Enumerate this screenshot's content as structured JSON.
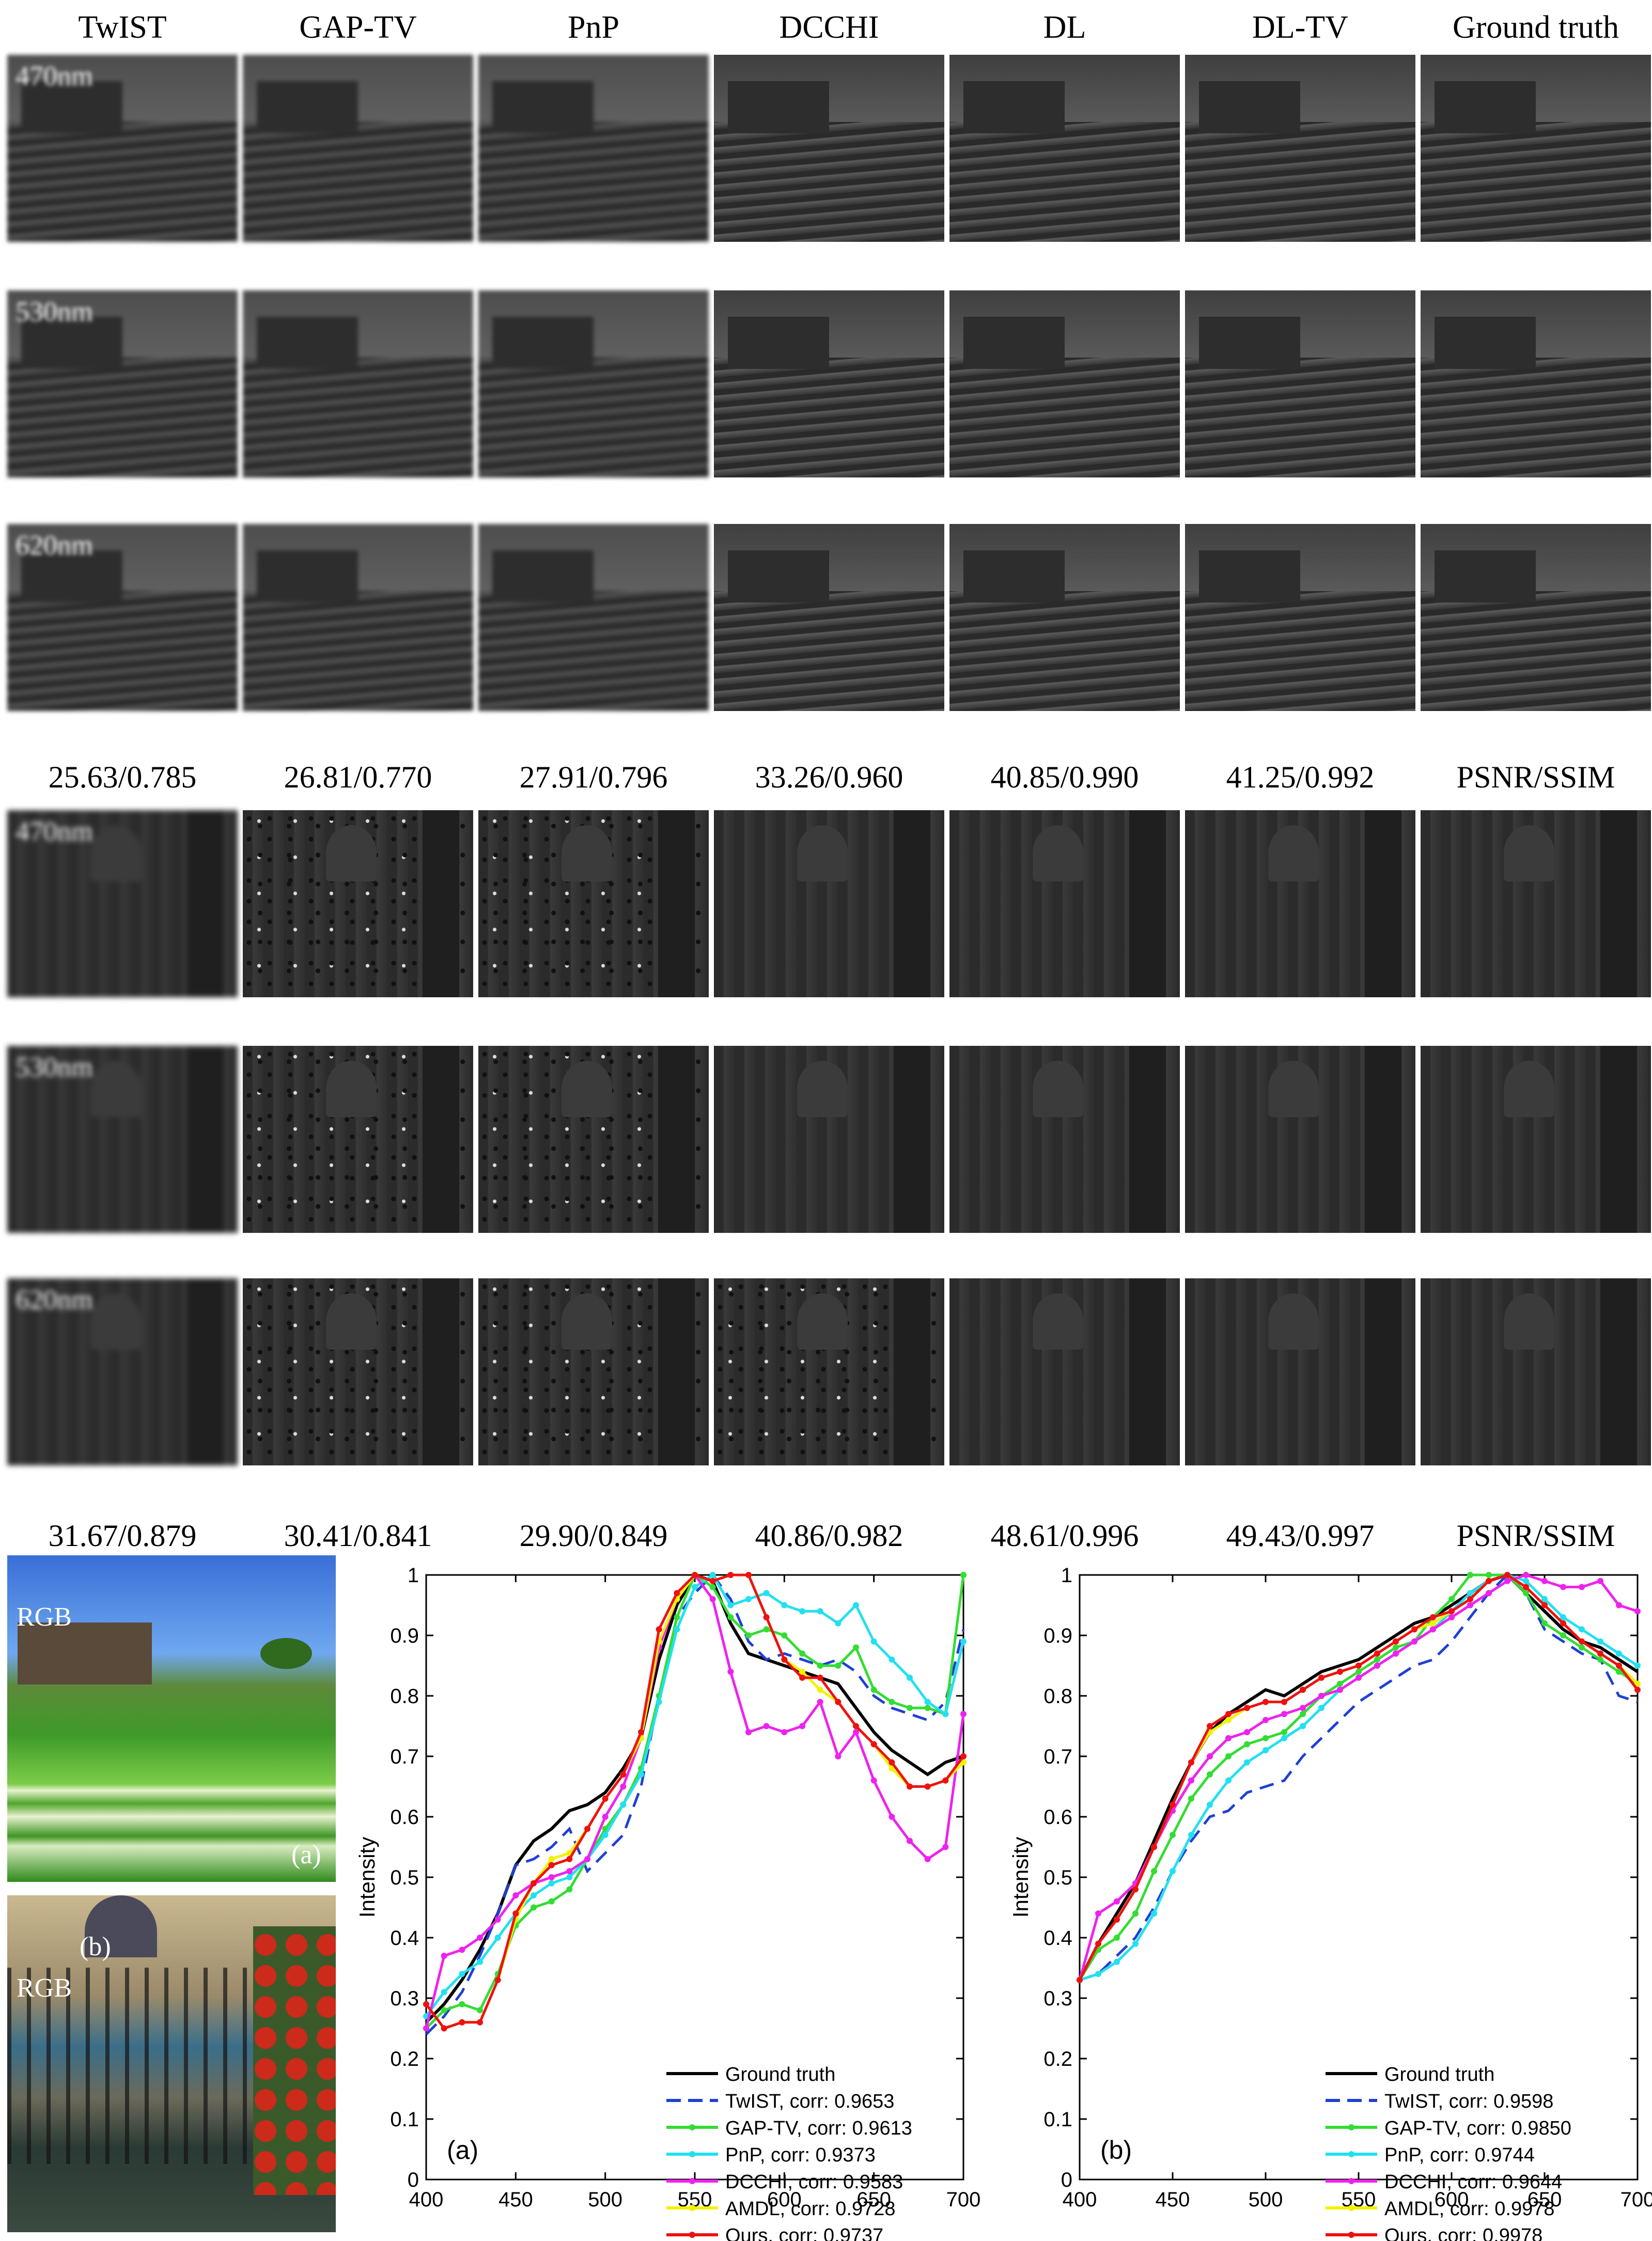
{
  "columns": [
    "TwIST",
    "GAP-TV",
    "PnP",
    "DCCHI",
    "DL",
    "DL-TV",
    "Ground truth"
  ],
  "wavelengths": [
    "470nm",
    "530nm",
    "620nm"
  ],
  "scene1_metrics": [
    "25.63/0.785",
    "26.81/0.770",
    "27.91/0.796",
    "33.26/0.960",
    "40.85/0.990",
    "41.25/0.992",
    "PSNR/SSIM"
  ],
  "scene2_metrics": [
    "31.67/0.879",
    "30.41/0.841",
    "29.90/0.849",
    "40.86/0.982",
    "48.61/0.996",
    "49.43/0.997",
    "PSNR/SSIM"
  ],
  "rgb": {
    "label": "RGB",
    "panel_a": "(a)",
    "panel_b": "(b)"
  },
  "colors": {
    "ground_truth": "#000000",
    "twist": "#1f3fd6",
    "gaptv": "#33dd33",
    "pnp": "#22e0f0",
    "dcchi": "#ee22ee",
    "amdl": "#f2f200",
    "ours": "#ee1111"
  },
  "chart_data": [
    {
      "type": "line",
      "panel_label": "(a)",
      "xlabel": "",
      "ylabel": "Intensity",
      "xlim": [
        400,
        700
      ],
      "ylim": [
        0,
        1
      ],
      "xticks": [
        400,
        450,
        500,
        550,
        600,
        650,
        700
      ],
      "yticks": [
        0,
        0.1,
        0.2,
        0.3,
        0.4,
        0.5,
        0.6,
        0.7,
        0.8,
        0.9,
        1
      ],
      "legend_position": "bottom-right",
      "x": [
        400,
        410,
        420,
        430,
        440,
        450,
        460,
        470,
        480,
        490,
        500,
        510,
        520,
        530,
        540,
        550,
        560,
        570,
        580,
        590,
        600,
        610,
        620,
        630,
        640,
        650,
        660,
        670,
        680,
        690,
        700
      ],
      "series": [
        {
          "key": "ground_truth",
          "name": "Ground truth",
          "values": [
            0.26,
            0.29,
            0.33,
            0.38,
            0.44,
            0.52,
            0.56,
            0.58,
            0.61,
            0.62,
            0.64,
            0.68,
            0.73,
            0.86,
            0.95,
            1.0,
            0.99,
            0.92,
            0.87,
            0.86,
            0.85,
            0.84,
            0.83,
            0.82,
            0.78,
            0.74,
            0.71,
            0.69,
            0.67,
            0.69,
            0.7
          ]
        },
        {
          "key": "twist",
          "name": "TwIST, corr: 0.9653",
          "values": [
            0.24,
            0.27,
            0.31,
            0.37,
            0.44,
            0.52,
            0.53,
            0.55,
            0.58,
            0.51,
            0.54,
            0.57,
            0.65,
            0.8,
            0.93,
            0.97,
            1.0,
            0.96,
            0.89,
            0.86,
            0.87,
            0.86,
            0.85,
            0.86,
            0.84,
            0.8,
            0.78,
            0.77,
            0.76,
            0.79,
            0.91
          ]
        },
        {
          "key": "gaptv",
          "name": "GAP-TV, corr: 0.9613",
          "values": [
            0.25,
            0.28,
            0.29,
            0.28,
            0.34,
            0.42,
            0.45,
            0.46,
            0.48,
            0.53,
            0.58,
            0.62,
            0.68,
            0.8,
            0.93,
            1.0,
            0.98,
            0.93,
            0.9,
            0.91,
            0.9,
            0.87,
            0.85,
            0.85,
            0.88,
            0.81,
            0.79,
            0.78,
            0.78,
            0.77,
            1.0
          ]
        },
        {
          "key": "pnp",
          "name": "PnP, corr: 0.9373",
          "values": [
            0.27,
            0.31,
            0.34,
            0.36,
            0.4,
            0.44,
            0.47,
            0.49,
            0.5,
            0.53,
            0.57,
            0.62,
            0.67,
            0.79,
            0.91,
            0.98,
            1.0,
            0.95,
            0.96,
            0.97,
            0.95,
            0.94,
            0.94,
            0.92,
            0.95,
            0.89,
            0.86,
            0.83,
            0.79,
            0.77,
            0.89
          ]
        },
        {
          "key": "dcchi",
          "name": "DCCHI, corr: 0.9583",
          "values": [
            0.25,
            0.37,
            0.38,
            0.4,
            0.43,
            0.47,
            0.49,
            0.5,
            0.51,
            0.53,
            0.6,
            0.65,
            0.73,
            0.88,
            0.96,
            1.0,
            0.96,
            0.84,
            0.74,
            0.75,
            0.74,
            0.75,
            0.79,
            0.7,
            0.74,
            0.66,
            0.6,
            0.56,
            0.53,
            0.55,
            0.77
          ]
        },
        {
          "key": "amdl",
          "name": "AMDL, corr: 0.9728",
          "values": [
            0.29,
            0.25,
            0.26,
            0.26,
            0.33,
            0.43,
            0.49,
            0.53,
            0.54,
            0.58,
            0.63,
            0.67,
            0.73,
            0.89,
            0.96,
            1.0,
            0.99,
            1.0,
            1.0,
            0.93,
            0.86,
            0.84,
            0.81,
            0.79,
            0.75,
            0.72,
            0.68,
            0.65,
            0.65,
            0.66,
            0.69
          ]
        },
        {
          "key": "ours",
          "name": "Ours, corr: 0.9737",
          "values": [
            0.29,
            0.25,
            0.26,
            0.26,
            0.33,
            0.44,
            0.49,
            0.52,
            0.53,
            0.58,
            0.63,
            0.67,
            0.74,
            0.91,
            0.97,
            1.0,
            0.99,
            1.0,
            1.0,
            0.93,
            0.86,
            0.83,
            0.83,
            0.79,
            0.75,
            0.72,
            0.69,
            0.65,
            0.65,
            0.66,
            0.7
          ]
        }
      ]
    },
    {
      "type": "line",
      "panel_label": "(b)",
      "xlabel": "",
      "ylabel": "Intensity",
      "xlim": [
        400,
        700
      ],
      "ylim": [
        0,
        1
      ],
      "xticks": [
        400,
        450,
        500,
        550,
        600,
        650,
        700
      ],
      "yticks": [
        0,
        0.1,
        0.2,
        0.3,
        0.4,
        0.5,
        0.6,
        0.7,
        0.8,
        0.9,
        1
      ],
      "legend_position": "bottom-right",
      "x": [
        400,
        410,
        420,
        430,
        440,
        450,
        460,
        470,
        480,
        490,
        500,
        510,
        520,
        530,
        540,
        550,
        560,
        570,
        580,
        590,
        600,
        610,
        620,
        630,
        640,
        650,
        660,
        670,
        680,
        690,
        700
      ],
      "series": [
        {
          "key": "ground_truth",
          "name": "Ground truth",
          "values": [
            0.33,
            0.39,
            0.44,
            0.49,
            0.56,
            0.63,
            0.69,
            0.74,
            0.77,
            0.79,
            0.81,
            0.8,
            0.82,
            0.84,
            0.85,
            0.86,
            0.88,
            0.9,
            0.92,
            0.93,
            0.95,
            0.97,
            0.99,
            1.0,
            0.97,
            0.94,
            0.91,
            0.89,
            0.88,
            0.86,
            0.84
          ]
        },
        {
          "key": "twist",
          "name": "TwIST, corr: 0.9598",
          "values": [
            0.33,
            0.34,
            0.37,
            0.4,
            0.45,
            0.51,
            0.56,
            0.6,
            0.61,
            0.64,
            0.65,
            0.66,
            0.7,
            0.73,
            0.76,
            0.79,
            0.81,
            0.83,
            0.85,
            0.86,
            0.89,
            0.93,
            0.97,
            1.0,
            0.97,
            0.91,
            0.89,
            0.87,
            0.86,
            0.8,
            0.79
          ]
        },
        {
          "key": "gaptv",
          "name": "GAP-TV, corr: 0.9850",
          "values": [
            0.33,
            0.38,
            0.4,
            0.44,
            0.51,
            0.57,
            0.63,
            0.67,
            0.7,
            0.72,
            0.73,
            0.74,
            0.77,
            0.8,
            0.82,
            0.84,
            0.86,
            0.88,
            0.89,
            0.93,
            0.96,
            1.0,
            1.0,
            1.0,
            0.97,
            0.92,
            0.9,
            0.88,
            0.86,
            0.84,
            0.82
          ]
        },
        {
          "key": "pnp",
          "name": "PnP, corr: 0.9744",
          "values": [
            0.33,
            0.34,
            0.36,
            0.39,
            0.44,
            0.51,
            0.57,
            0.62,
            0.66,
            0.69,
            0.71,
            0.73,
            0.75,
            0.78,
            0.81,
            0.83,
            0.85,
            0.87,
            0.89,
            0.91,
            0.94,
            0.97,
            0.99,
            1.0,
            0.99,
            0.96,
            0.93,
            0.91,
            0.89,
            0.87,
            0.85
          ]
        },
        {
          "key": "dcchi",
          "name": "DCCHI, corr: 0.9644",
          "values": [
            0.33,
            0.44,
            0.46,
            0.49,
            0.55,
            0.61,
            0.66,
            0.7,
            0.73,
            0.74,
            0.76,
            0.77,
            0.78,
            0.8,
            0.81,
            0.83,
            0.85,
            0.87,
            0.89,
            0.91,
            0.93,
            0.95,
            0.97,
            0.99,
            1.0,
            0.99,
            0.98,
            0.98,
            0.99,
            0.95,
            0.94
          ]
        },
        {
          "key": "amdl",
          "name": "AMDL, corr: 0.9978",
          "values": [
            0.33,
            0.39,
            0.43,
            0.48,
            0.55,
            0.62,
            0.69,
            0.74,
            0.76,
            0.78,
            0.79,
            0.79,
            0.81,
            0.83,
            0.84,
            0.85,
            0.87,
            0.89,
            0.91,
            0.92,
            0.94,
            0.96,
            0.99,
            1.0,
            0.98,
            0.95,
            0.92,
            0.89,
            0.87,
            0.85,
            0.82
          ]
        },
        {
          "key": "ours",
          "name": "Ours, corr: 0.9978",
          "values": [
            0.33,
            0.39,
            0.43,
            0.48,
            0.55,
            0.62,
            0.69,
            0.75,
            0.77,
            0.78,
            0.79,
            0.79,
            0.81,
            0.83,
            0.84,
            0.85,
            0.87,
            0.89,
            0.91,
            0.93,
            0.94,
            0.96,
            0.99,
            1.0,
            0.98,
            0.95,
            0.92,
            0.89,
            0.87,
            0.85,
            0.81
          ]
        }
      ]
    }
  ]
}
